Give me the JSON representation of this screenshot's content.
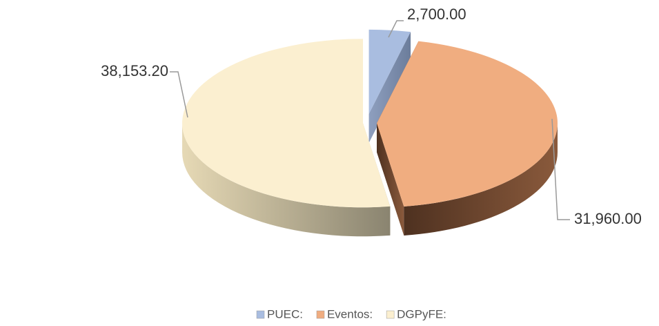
{
  "chart_data": {
    "type": "pie3d",
    "categories": [
      "PUEC:",
      "Eventos:",
      "DGPyFE:"
    ],
    "values": [
      2700,
      31960,
      38153.2
    ],
    "value_labels": [
      "2,700.00",
      "31,960.00",
      "38,153.20"
    ],
    "colors": [
      "#a9bde0",
      "#f0ad80",
      "#fbefd0"
    ],
    "legend": "bottom"
  }
}
